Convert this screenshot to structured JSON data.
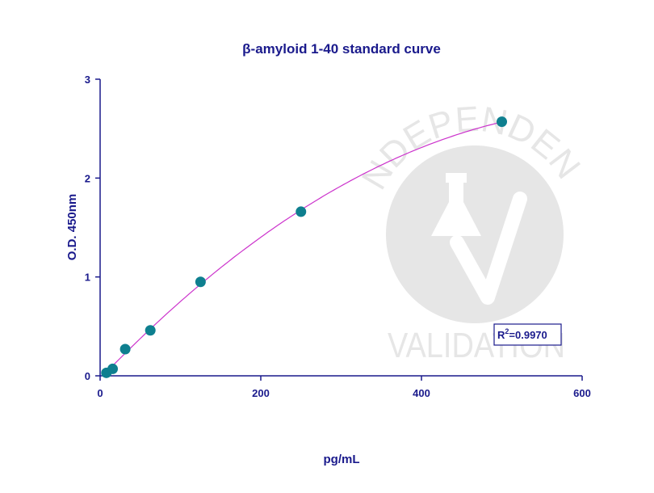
{
  "chart_data": {
    "type": "scatter",
    "title": "β-amyloid 1-40 standard curve",
    "xlabel": "pg/mL",
    "ylabel": "O.D. 450nm",
    "xlim": [
      0,
      600
    ],
    "ylim": [
      0,
      3
    ],
    "xticks": [
      "0",
      "200",
      "400",
      "600"
    ],
    "yticks": [
      "0",
      "1",
      "2",
      "3"
    ],
    "grid": false,
    "points": [
      {
        "x": 7.8,
        "y": 0.03
      },
      {
        "x": 15.6,
        "y": 0.07
      },
      {
        "x": 31.25,
        "y": 0.27
      },
      {
        "x": 62.5,
        "y": 0.46
      },
      {
        "x": 125,
        "y": 0.95
      },
      {
        "x": 250,
        "y": 1.66
      },
      {
        "x": 500,
        "y": 2.57
      }
    ],
    "fit": {
      "type": "polynomial-2",
      "color": "#cc33cc"
    },
    "annotation": {
      "r2_prefix": "R",
      "r2_exp": "2",
      "r2_value": "=0.9970"
    },
    "colors": {
      "point": "#0e7f8f",
      "axis": "#1a1a8c",
      "curve": "#cc33cc",
      "watermark": "#e6e6e6"
    }
  },
  "watermark": {
    "top_text": "INDEPENDENT",
    "bottom_text": "VALIDATION"
  }
}
